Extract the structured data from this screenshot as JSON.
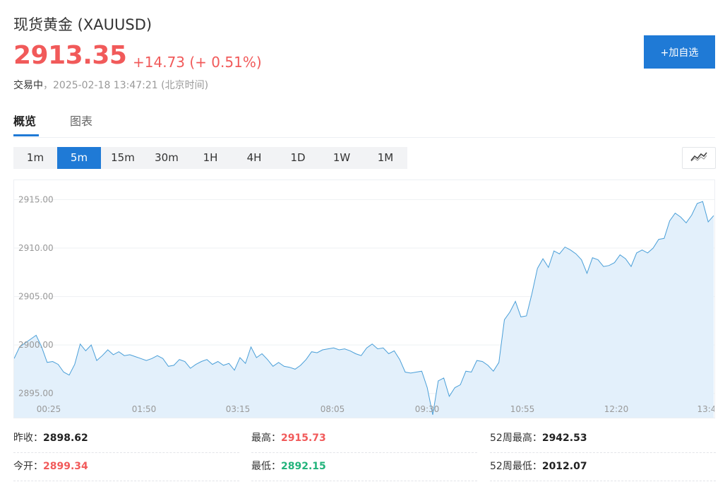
{
  "header": {
    "title": "现货黄金 (XAUUSD)",
    "price": "2913.35",
    "change": "+14.73 (+ 0.51%)",
    "status_label": "交易中",
    "status_time": "，2025-02-18 13:47:21 (北京时间)",
    "add_button_label": "+加自选"
  },
  "tabs": [
    {
      "label": "概览",
      "active": true
    },
    {
      "label": "图表",
      "active": false
    }
  ],
  "periods": [
    {
      "label": "1m"
    },
    {
      "label": "5m",
      "active": true
    },
    {
      "label": "15m"
    },
    {
      "label": "30m"
    },
    {
      "label": "1H"
    },
    {
      "label": "4H"
    },
    {
      "label": "1D"
    },
    {
      "label": "1W"
    },
    {
      "label": "1M"
    }
  ],
  "colors": {
    "up": "#f15a5a",
    "down": "#22b37b",
    "accent": "#1f7ad6",
    "line": "#4a9fd8",
    "fill": "#e3f0fb"
  },
  "chart_data": {
    "type": "area",
    "x_ticks": [
      "00:25",
      "01:50",
      "03:15",
      "08:05",
      "09:30",
      "10:55",
      "12:20",
      "13:4"
    ],
    "y_ticks": [
      "2915.00",
      "2910.00",
      "2905.00",
      "2900.00",
      "2895.00"
    ],
    "ylim": [
      2892.5,
      2917
    ],
    "series": [
      {
        "values": [
          2898.6,
          2899.8,
          2900.2,
          2900.6,
          2901.0,
          2899.8,
          2898.2,
          2898.3,
          2898.0,
          2897.2,
          2896.9,
          2898.0,
          2900.1,
          2899.4,
          2900.0,
          2898.4,
          2898.9,
          2899.5,
          2899.0,
          2899.3,
          2898.9,
          2899.0,
          2898.8,
          2898.6,
          2898.4,
          2898.6,
          2898.9,
          2898.6,
          2897.8,
          2897.9,
          2898.5,
          2898.3,
          2897.6,
          2898.0,
          2898.3,
          2898.5,
          2898.0,
          2898.3,
          2897.9,
          2898.1,
          2897.4,
          2898.7,
          2898.1,
          2899.8,
          2898.7,
          2899.1,
          2898.5,
          2897.8,
          2898.2,
          2897.8,
          2897.7,
          2897.5,
          2897.9,
          2898.5,
          2899.3,
          2899.2,
          2899.5,
          2899.6,
          2899.7,
          2899.5,
          2899.6,
          2899.4,
          2899.1,
          2898.9,
          2899.7,
          2900.1,
          2899.6,
          2899.7,
          2899.1,
          2899.4,
          2898.5,
          2897.2,
          2897.1,
          2897.2,
          2897.3,
          2895.6,
          2892.8,
          2896.3,
          2896.6,
          2894.7,
          2895.6,
          2895.9,
          2897.3,
          2897.2,
          2898.4,
          2898.3,
          2897.9,
          2897.3,
          2898.2,
          2902.6,
          2903.4,
          2904.5,
          2902.9,
          2903.0,
          2905.3,
          2907.9,
          2908.9,
          2908.0,
          2909.7,
          2909.4,
          2910.1,
          2909.8,
          2909.4,
          2908.8,
          2907.4,
          2909.0,
          2908.8,
          2908.1,
          2908.2,
          2908.5,
          2909.3,
          2908.9,
          2908.1,
          2909.5,
          2909.8,
          2909.5,
          2910.0,
          2910.9,
          2911.0,
          2912.8,
          2913.6,
          2913.2,
          2912.6,
          2913.4,
          2914.6,
          2914.8,
          2912.7,
          2913.35
        ]
      }
    ]
  },
  "stats": [
    {
      "label": "昨收：",
      "value": "2898.62",
      "trend": "neutral"
    },
    {
      "label": "最高：",
      "value": "2915.73",
      "trend": "up"
    },
    {
      "label": "52周最高：",
      "value": "2942.53",
      "trend": "neutral"
    },
    {
      "label": "今开：",
      "value": "2899.34",
      "trend": "up"
    },
    {
      "label": "最低：",
      "value": "2892.15",
      "trend": "down"
    },
    {
      "label": "52周最低：",
      "value": "2012.07",
      "trend": "neutral"
    }
  ],
  "icons": {
    "chart_type": "line-chart-icon"
  }
}
